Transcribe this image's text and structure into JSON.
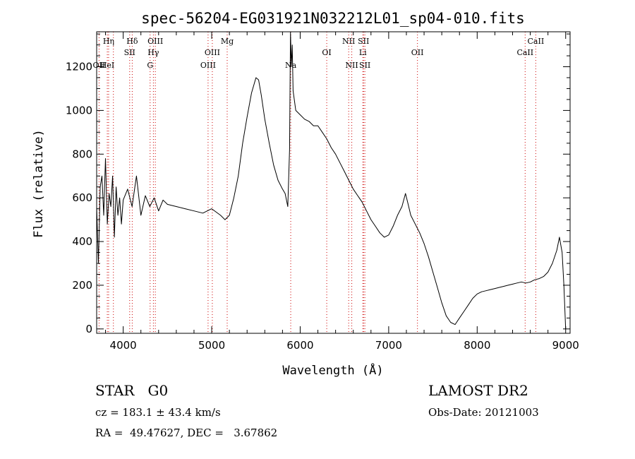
{
  "chart_data": {
    "type": "line",
    "title": "spec-56204-EG031921N032212L01_sp04-010.fits",
    "xlabel": "Wavelength (Å)",
    "ylabel": "Flux (relative)",
    "xlim": [
      3700,
      9050
    ],
    "ylim": [
      -20,
      1360
    ],
    "xticks": [
      4000,
      5000,
      6000,
      7000,
      8000,
      9000
    ],
    "xtick_labels": [
      "4000",
      "5000",
      "6000",
      "7000",
      "8000",
      "9000"
    ],
    "yticks": [
      0,
      200,
      400,
      600,
      800,
      1000,
      1200
    ],
    "ytick_labels": [
      "0",
      "200",
      "400",
      "600",
      "800",
      "1000",
      "1200"
    ],
    "grid": false,
    "line_color": "#000000",
    "marker_color": "#cc0000",
    "series": [
      {
        "x": [
          3700,
          3720,
          3740,
          3760,
          3780,
          3800,
          3820,
          3840,
          3860,
          3880,
          3900,
          3920,
          3940,
          3960,
          3980,
          4000,
          4050,
          4100,
          4150,
          4200,
          4250,
          4300,
          4350,
          4400,
          4450,
          4500,
          4600,
          4700,
          4800,
          4900,
          5000,
          5100,
          5150,
          5200,
          5250,
          5300,
          5350,
          5400,
          5450,
          5500,
          5530,
          5560,
          5600,
          5650,
          5700,
          5750,
          5800,
          5830,
          5860,
          5880,
          5890,
          5900,
          5910,
          5920,
          5950,
          6000,
          6050,
          6100,
          6150,
          6200,
          6250,
          6300,
          6350,
          6400,
          6450,
          6500,
          6550,
          6600,
          6650,
          6700,
          6750,
          6800,
          6850,
          6900,
          6950,
          7000,
          7050,
          7100,
          7150,
          7190,
          7220,
          7250,
          7300,
          7350,
          7400,
          7450,
          7500,
          7550,
          7600,
          7650,
          7700,
          7750,
          7800,
          7850,
          7900,
          7950,
          8000,
          8050,
          8100,
          8150,
          8200,
          8250,
          8300,
          8350,
          8400,
          8450,
          8500,
          8550,
          8600,
          8650,
          8700,
          8750,
          8800,
          8850,
          8900,
          8930,
          8960,
          8980,
          9000
        ],
        "y": [
          560,
          300,
          650,
          700,
          520,
          780,
          480,
          620,
          560,
          700,
          420,
          650,
          520,
          600,
          480,
          590,
          640,
          560,
          700,
          520,
          610,
          560,
          600,
          540,
          590,
          570,
          560,
          550,
          540,
          530,
          550,
          520,
          500,
          520,
          600,
          700,
          850,
          970,
          1080,
          1150,
          1140,
          1070,
          960,
          850,
          750,
          680,
          640,
          620,
          560,
          820,
          1360,
          1200,
          1300,
          1090,
          1000,
          980,
          960,
          950,
          930,
          930,
          900,
          870,
          830,
          800,
          760,
          720,
          680,
          640,
          610,
          580,
          540,
          500,
          470,
          440,
          420,
          430,
          470,
          520,
          560,
          620,
          570,
          520,
          480,
          440,
          390,
          330,
          260,
          190,
          120,
          60,
          30,
          20,
          50,
          80,
          110,
          140,
          160,
          170,
          175,
          180,
          185,
          190,
          195,
          200,
          205,
          210,
          215,
          210,
          215,
          225,
          230,
          240,
          260,
          300,
          360,
          420,
          350,
          200,
          0
        ]
      }
    ],
    "line_markers": [
      {
        "wavelength": 3727,
        "label": "OII",
        "row": 3
      },
      {
        "wavelength": 3820,
        "label": "HeI",
        "row": 3
      },
      {
        "wavelength": 3835,
        "label": "Hη",
        "row": 1
      },
      {
        "wavelength": 3889,
        "label": "",
        "row": 0
      },
      {
        "wavelength": 4073,
        "label": "SII",
        "row": 2
      },
      {
        "wavelength": 4102,
        "label": "Hδ",
        "row": 1
      },
      {
        "wavelength": 4304,
        "label": "G",
        "row": 3
      },
      {
        "wavelength": 4341,
        "label": "Hγ",
        "row": 2
      },
      {
        "wavelength": 4363,
        "label": "OIII",
        "row": 1
      },
      {
        "wavelength": 4959,
        "label": "OIII",
        "row": 3
      },
      {
        "wavelength": 5007,
        "label": "OIII",
        "row": 2
      },
      {
        "wavelength": 5175,
        "label": "Mg",
        "row": 1
      },
      {
        "wavelength": 5893,
        "label": "Na",
        "row": 3
      },
      {
        "wavelength": 6300,
        "label": "OI",
        "row": 2
      },
      {
        "wavelength": 6548,
        "label": "NII",
        "row": 1
      },
      {
        "wavelength": 6583,
        "label": "NII",
        "row": 3
      },
      {
        "wavelength": 6708,
        "label": "Li",
        "row": 2
      },
      {
        "wavelength": 6716,
        "label": "SII",
        "row": 1
      },
      {
        "wavelength": 6731,
        "label": "SII",
        "row": 3
      },
      {
        "wavelength": 7325,
        "label": "OII",
        "row": 2
      },
      {
        "wavelength": 8542,
        "label": "CaII",
        "row": 2
      },
      {
        "wavelength": 8662,
        "label": "CaII",
        "row": 1
      }
    ]
  },
  "info": {
    "class_label": "STAR   G0",
    "survey_label": "LAMOST DR2",
    "redshift_label": "cz = 183.1 ± 43.4 km/s",
    "obs_date_label": "Obs-Date: 20121003",
    "coords_label": "RA =  49.47627, DEC =   3.67862"
  }
}
